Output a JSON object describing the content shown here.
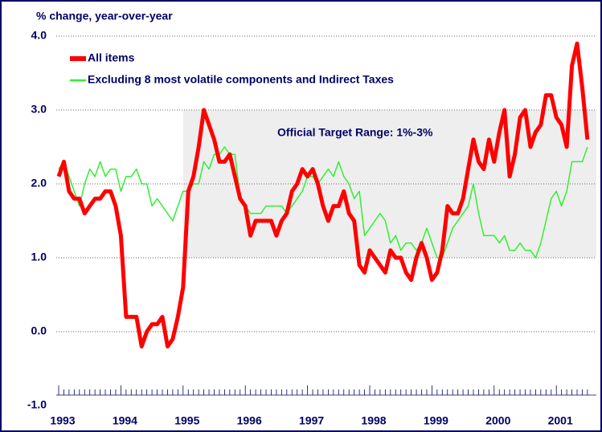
{
  "chart_data": {
    "type": "line",
    "y_label": "% change, year-over-year",
    "categories": [
      "1993",
      null,
      null,
      null,
      null,
      null,
      null,
      null,
      null,
      null,
      null,
      null,
      "1994",
      null,
      null,
      null,
      null,
      null,
      null,
      null,
      null,
      null,
      null,
      null,
      "1995",
      null,
      null,
      null,
      null,
      null,
      null,
      null,
      null,
      null,
      null,
      null,
      "1996",
      null,
      null,
      null,
      null,
      null,
      null,
      null,
      null,
      null,
      null,
      null,
      "1997",
      null,
      null,
      null,
      null,
      null,
      null,
      null,
      null,
      null,
      null,
      null,
      "1998",
      null,
      null,
      null,
      null,
      null,
      null,
      null,
      null,
      null,
      null,
      null,
      "1999",
      null,
      null,
      null,
      null,
      null,
      null,
      null,
      null,
      null,
      null,
      null,
      "2000",
      null,
      null,
      null,
      null,
      null,
      null,
      null,
      null,
      null,
      null,
      null,
      "2001",
      null,
      null,
      null,
      null,
      null,
      null
    ],
    "series": [
      {
        "name": "All items",
        "color": "#ff0000",
        "width": 5,
        "values": [
          2.1,
          2.3,
          1.9,
          1.8,
          1.8,
          1.6,
          1.7,
          1.8,
          1.8,
          1.9,
          1.9,
          1.7,
          1.3,
          0.2,
          0.2,
          0.2,
          -0.2,
          0.0,
          0.1,
          0.1,
          0.2,
          -0.2,
          -0.1,
          0.2,
          0.6,
          1.9,
          2.1,
          2.5,
          3.0,
          2.8,
          2.6,
          2.3,
          2.3,
          2.4,
          2.1,
          1.8,
          1.7,
          1.3,
          1.5,
          1.5,
          1.5,
          1.5,
          1.3,
          1.5,
          1.6,
          1.9,
          2.0,
          2.2,
          2.1,
          2.2,
          2.0,
          1.7,
          1.5,
          1.7,
          1.7,
          1.9,
          1.6,
          1.5,
          0.9,
          0.8,
          1.1,
          1.0,
          0.9,
          0.8,
          1.1,
          1.0,
          1.0,
          0.8,
          0.7,
          1.0,
          1.2,
          1.0,
          0.7,
          0.8,
          1.1,
          1.7,
          1.6,
          1.6,
          1.8,
          2.2,
          2.6,
          2.3,
          2.2,
          2.6,
          2.3,
          2.7,
          3.0,
          2.1,
          2.4,
          2.9,
          3.0,
          2.5,
          2.7,
          2.8,
          3.2,
          3.2,
          2.9,
          2.8,
          2.5,
          3.6,
          3.9,
          3.3,
          2.6
        ]
      },
      {
        "name": "Excluding 8 most volatile components and Indirect Taxes",
        "color": "#33ee33",
        "width": 1.5,
        "values": [
          2.2,
          2.3,
          2.1,
          1.9,
          1.7,
          2.0,
          2.2,
          2.1,
          2.3,
          2.1,
          2.2,
          2.2,
          1.9,
          2.1,
          2.1,
          2.2,
          2.0,
          2.0,
          1.7,
          1.8,
          1.7,
          1.6,
          1.5,
          1.7,
          1.9,
          1.9,
          2.0,
          2.0,
          2.3,
          2.2,
          2.4,
          2.4,
          2.5,
          2.4,
          2.4,
          1.8,
          1.7,
          1.6,
          1.6,
          1.6,
          1.7,
          1.7,
          1.7,
          1.7,
          1.6,
          1.7,
          1.8,
          1.9,
          2.1,
          2.1,
          2.0,
          2.1,
          2.2,
          2.1,
          2.3,
          2.1,
          2.0,
          1.8,
          1.9,
          1.3,
          1.4,
          1.5,
          1.6,
          1.5,
          1.2,
          1.3,
          1.1,
          1.2,
          1.2,
          1.1,
          1.2,
          1.4,
          1.2,
          1.0,
          1.0,
          1.2,
          1.4,
          1.5,
          1.6,
          1.7,
          2.0,
          1.6,
          1.3,
          1.3,
          1.3,
          1.2,
          1.3,
          1.1,
          1.1,
          1.2,
          1.1,
          1.1,
          1.0,
          1.2,
          1.5,
          1.8,
          1.9,
          1.7,
          1.9,
          2.3,
          2.3,
          2.3,
          2.5
        ]
      }
    ],
    "target_range": {
      "label": "Official Target Range: 1%-3%",
      "low": 1,
      "high": 3,
      "start": "1995",
      "color": "#eeeeee"
    },
    "ylim": [
      -1,
      4
    ],
    "yticks": [
      {
        "value": -1,
        "label": "-1.0"
      },
      {
        "value": 0,
        "label": "0.0"
      },
      {
        "value": 1,
        "label": "1.0"
      },
      {
        "value": 2,
        "label": "2.0"
      },
      {
        "value": 3,
        "label": "3.0"
      },
      {
        "value": 4,
        "label": "4.0"
      }
    ],
    "grid": true
  }
}
